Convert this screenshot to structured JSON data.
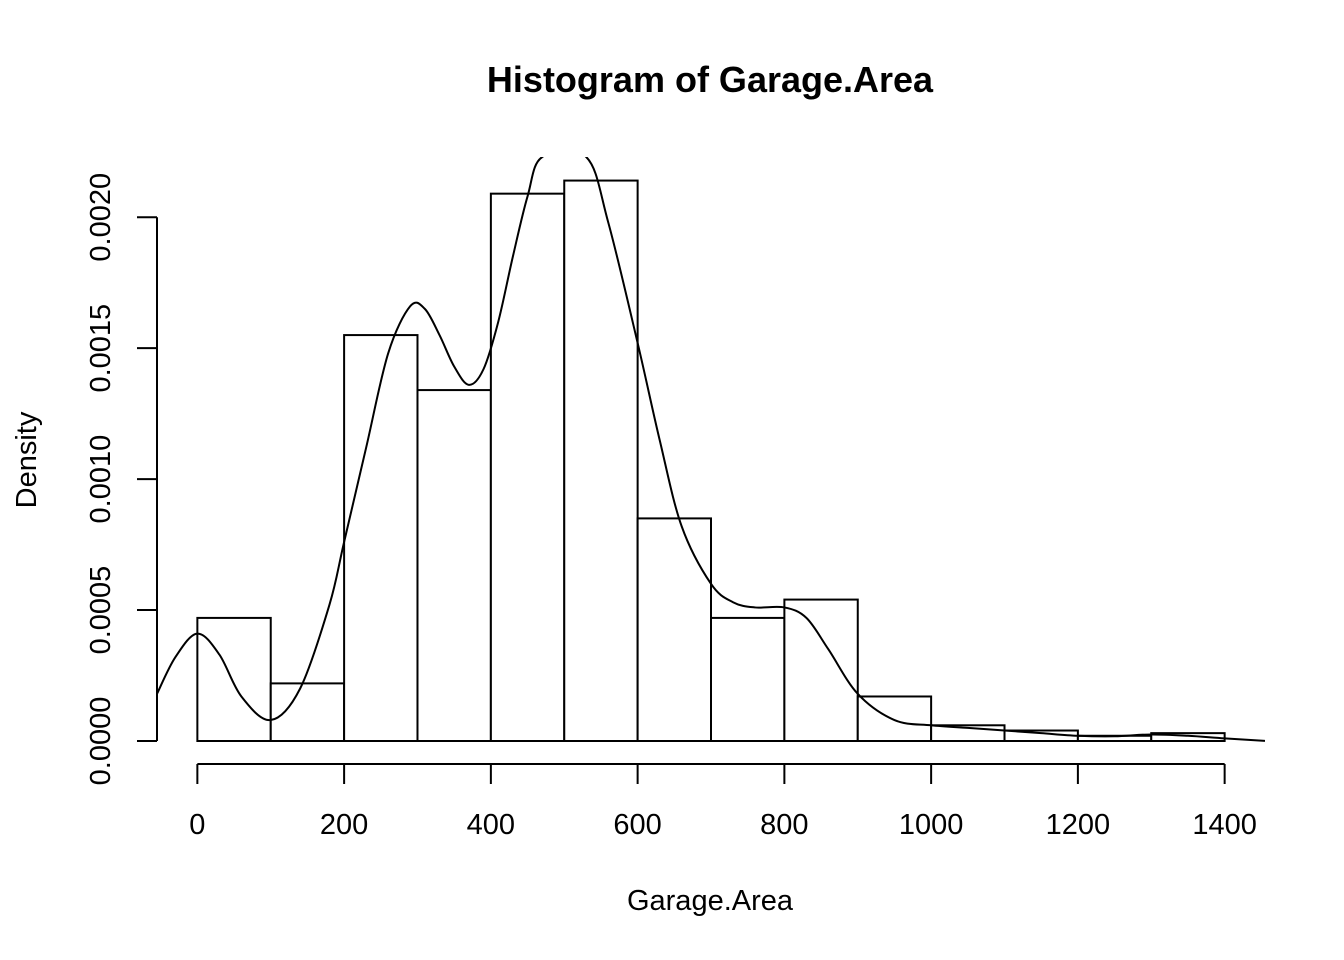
{
  "chart_data": {
    "type": "bar",
    "subtype": "histogram",
    "title": "Histogram of Garage.Area",
    "xlabel": "Garage.Area",
    "ylabel": "Density",
    "bin_width": 100,
    "bins": [
      {
        "start": 0,
        "end": 100,
        "density": 0.00047
      },
      {
        "start": 100,
        "end": 200,
        "density": 0.00022
      },
      {
        "start": 200,
        "end": 300,
        "density": 0.00155
      },
      {
        "start": 300,
        "end": 400,
        "density": 0.00134
      },
      {
        "start": 400,
        "end": 500,
        "density": 0.00209
      },
      {
        "start": 500,
        "end": 600,
        "density": 0.00214
      },
      {
        "start": 600,
        "end": 700,
        "density": 0.00085
      },
      {
        "start": 700,
        "end": 800,
        "density": 0.00047
      },
      {
        "start": 800,
        "end": 900,
        "density": 0.00054
      },
      {
        "start": 900,
        "end": 1000,
        "density": 0.00017
      },
      {
        "start": 1000,
        "end": 1100,
        "density": 6e-05
      },
      {
        "start": 1100,
        "end": 1200,
        "density": 4e-05
      },
      {
        "start": 1200,
        "end": 1300,
        "density": 2e-05
      },
      {
        "start": 1300,
        "end": 1400,
        "density": 3e-05
      }
    ],
    "density_curve": {
      "x": [
        -55,
        -30,
        0,
        30,
        60,
        100,
        140,
        180,
        200,
        230,
        260,
        290,
        310,
        330,
        350,
        370,
        390,
        410,
        430,
        450,
        470,
        530,
        560,
        600,
        630,
        660,
        700,
        730,
        760,
        800,
        830,
        860,
        900,
        950,
        1000,
        1050,
        1100,
        1150,
        1200,
        1250,
        1300,
        1350,
        1400,
        1455
      ],
      "y": [
        0.00018,
        0.00032,
        0.00041,
        0.00033,
        0.00017,
        8e-05,
        0.0002,
        0.00052,
        0.00076,
        0.00112,
        0.00148,
        0.00166,
        0.00165,
        0.00155,
        0.00143,
        0.00136,
        0.00142,
        0.0016,
        0.00185,
        0.00208,
        0.00223,
        0.00223,
        0.00198,
        0.00152,
        0.00115,
        0.00082,
        0.0006,
        0.00053,
        0.00051,
        0.00051,
        0.00047,
        0.00035,
        0.00018,
        8e-05,
        6e-05,
        5e-05,
        4e-05,
        3e-05,
        2e-05,
        1.8e-05,
        2.5e-05,
        2e-05,
        1e-05,
        5e-07
      ]
    },
    "x_ticks": [
      0,
      200,
      400,
      600,
      800,
      1000,
      1200,
      1400
    ],
    "x_tick_labels": [
      "0",
      "200",
      "400",
      "600",
      "800",
      "1000",
      "1200",
      "1400"
    ],
    "y_ticks": [
      0,
      0.0005,
      0.001,
      0.0015,
      0.002
    ],
    "y_tick_labels": [
      "0.0000",
      "0.0005",
      "0.0010",
      "0.0015",
      "0.0020"
    ],
    "xlim": [
      -55,
      1455
    ],
    "ylim": [
      0,
      0.00223
    ],
    "grid": false,
    "legend": "none",
    "colors": {
      "bar_fill": "#ffffff",
      "stroke": "#000000"
    }
  }
}
